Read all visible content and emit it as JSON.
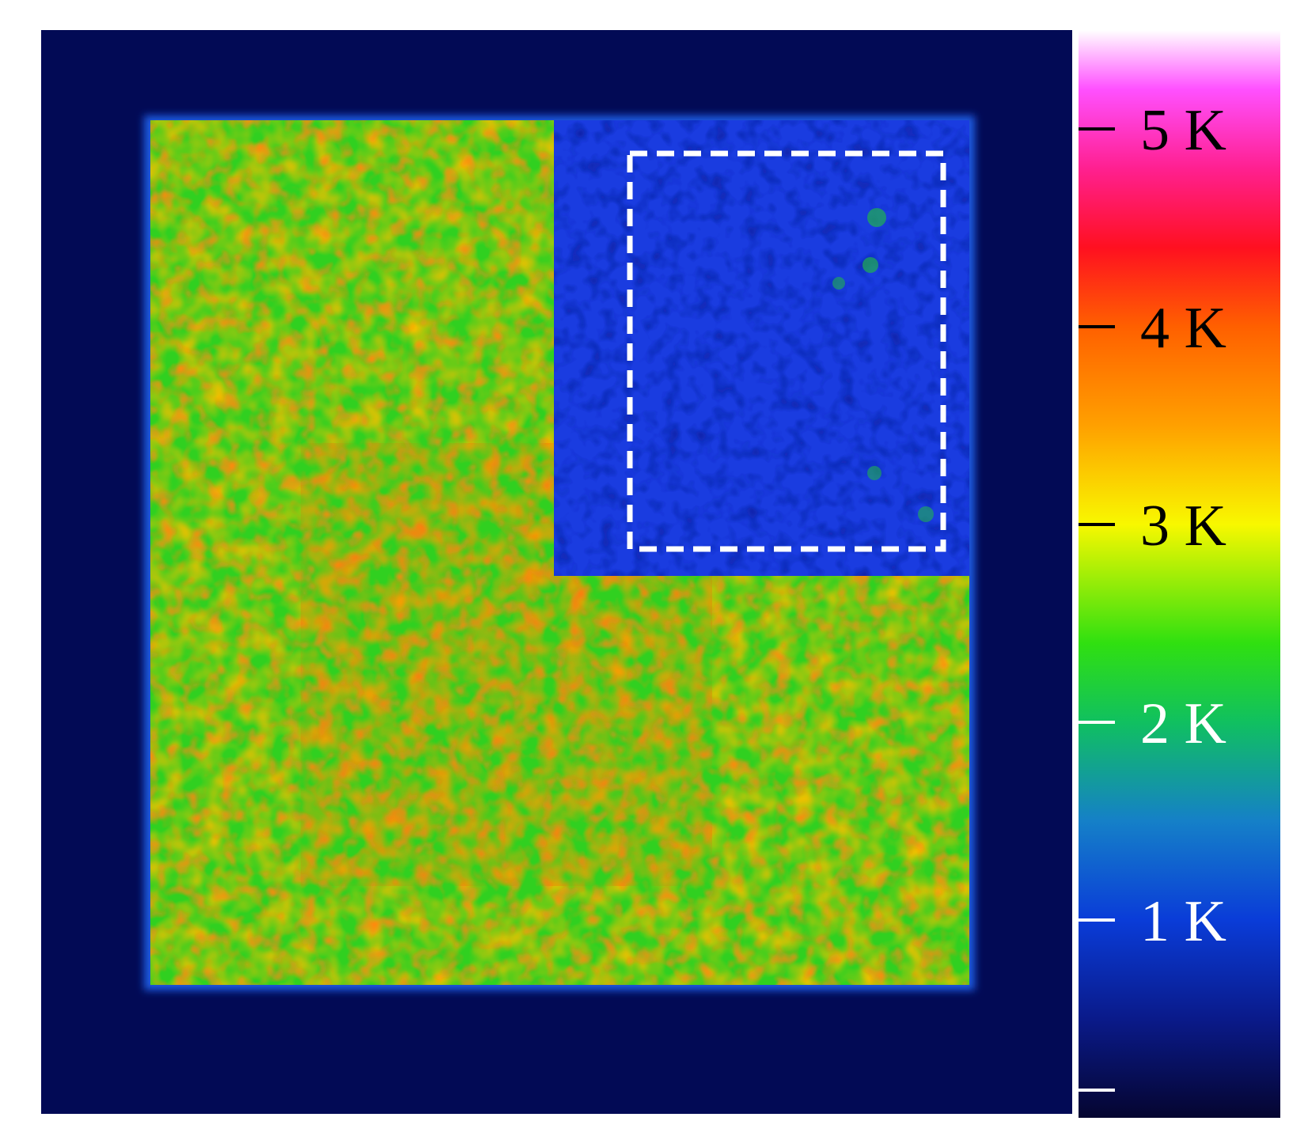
{
  "colorbar": {
    "ticks": [
      {
        "value": 5,
        "label": "5 K",
        "label_color": "#000000"
      },
      {
        "value": 4,
        "label": "4 K",
        "label_color": "#000000"
      },
      {
        "value": 3,
        "label": "3 K",
        "label_color": "#000000"
      },
      {
        "value": 2,
        "label": "2 K",
        "label_color": "#ffffff"
      },
      {
        "value": 1,
        "label": "1 K",
        "label_color": "#ffffff"
      },
      {
        "value": 0,
        "label": "",
        "label_color": "#ffffff"
      }
    ],
    "range": [
      0,
      5.5
    ],
    "stops": [
      {
        "value": 0.0,
        "color": "#050530"
      },
      {
        "value": 0.5,
        "color": "#0a1a8a"
      },
      {
        "value": 1.0,
        "color": "#0a3cd8"
      },
      {
        "value": 1.5,
        "color": "#1580c8"
      },
      {
        "value": 2.0,
        "color": "#10c060"
      },
      {
        "value": 2.4,
        "color": "#30e010"
      },
      {
        "value": 3.0,
        "color": "#f8f800"
      },
      {
        "value": 3.5,
        "color": "#ffa000"
      },
      {
        "value": 4.0,
        "color": "#ff6000"
      },
      {
        "value": 4.4,
        "color": "#ff1020"
      },
      {
        "value": 4.8,
        "color": "#ff2090"
      },
      {
        "value": 5.2,
        "color": "#ff50ff"
      },
      {
        "value": 5.5,
        "color": "#ffffff"
      }
    ]
  },
  "thermal_image": {
    "background_color": "#020a55",
    "hot_region_color": "#ffa020",
    "cold_region_color": "#1a3ce0",
    "roi_box_color": "#ffffff"
  }
}
